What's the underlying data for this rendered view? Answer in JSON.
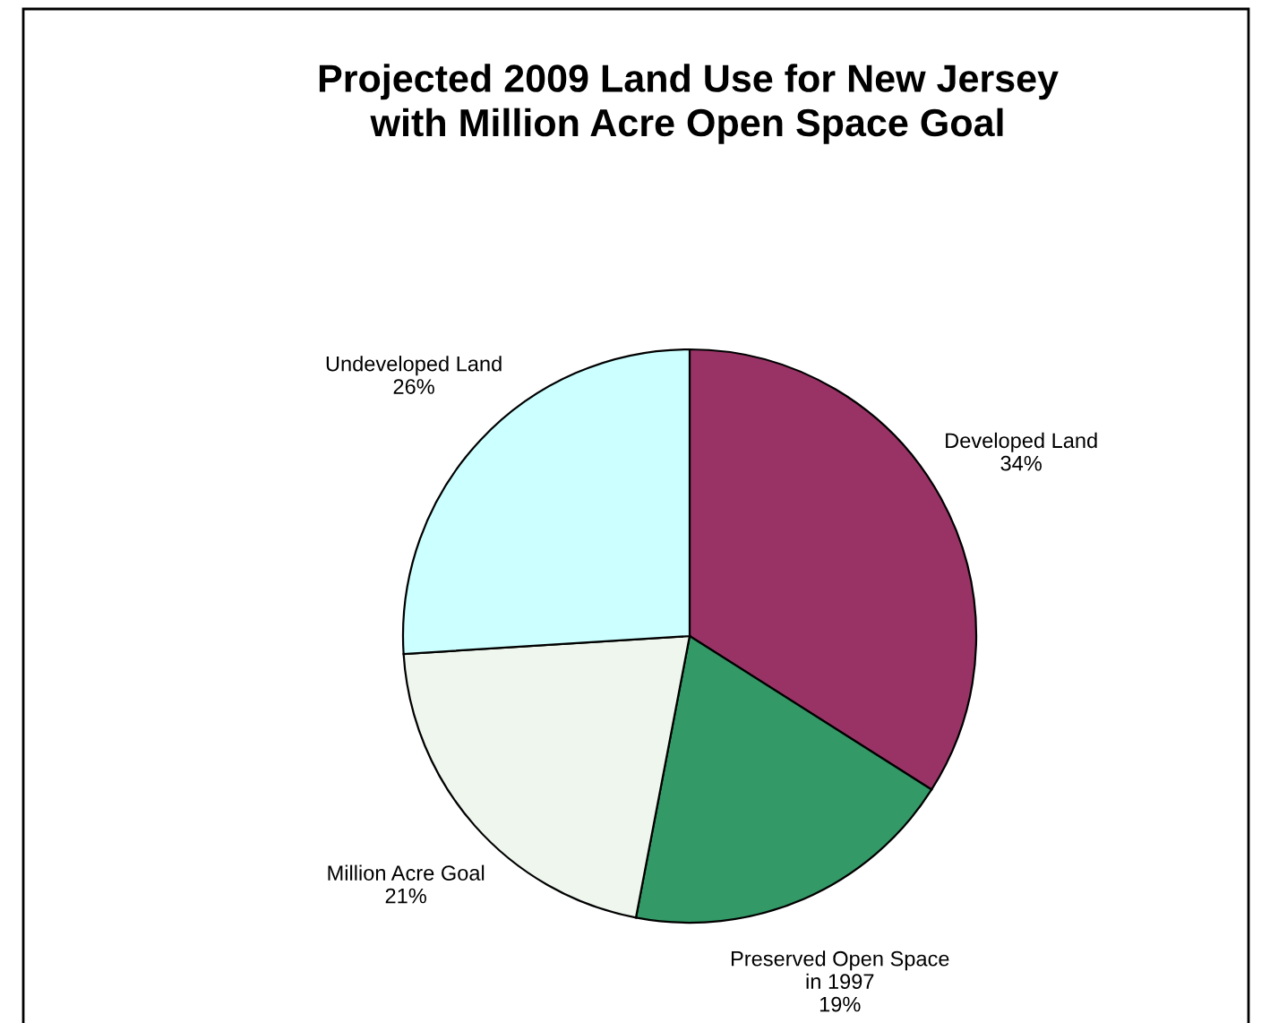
{
  "chart_data": {
    "type": "pie",
    "title": "Projected 2009 Land Use for New Jersey\nwith Million Acre Open Space Goal",
    "categories": [
      "Developed Land",
      "Preserved Open Space\nin 1997",
      "Million Acre Goal",
      "Undeveloped Land"
    ],
    "values": [
      34,
      19,
      21,
      26
    ],
    "colors": [
      "#993366",
      "#339966",
      "#eef6ee",
      "#ccffff"
    ],
    "value_labels": [
      "34%",
      "19%",
      "21%",
      "26%"
    ]
  }
}
